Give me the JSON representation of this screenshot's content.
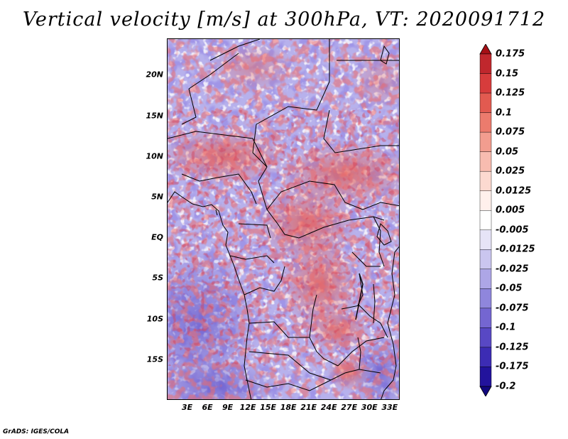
{
  "title": "Vertical velocity [m/s] at 300hPa, VT: 2020091712",
  "credit": "GrADS: IGES/COLA",
  "map": {
    "region": "Central Africa",
    "lat_labels": [
      "20N",
      "15N",
      "10N",
      "5N",
      "EQ",
      "5S",
      "10S",
      "15S"
    ],
    "lat_values": [
      20,
      15,
      10,
      5,
      0,
      -5,
      -10,
      -15
    ],
    "lon_labels": [
      "3E",
      "6E",
      "9E",
      "12E",
      "15E",
      "18E",
      "21E",
      "24E",
      "27E",
      "30E",
      "33E"
    ],
    "lon_values": [
      3,
      6,
      9,
      12,
      15,
      18,
      21,
      24,
      27,
      30,
      33
    ],
    "lon_range": [
      0,
      34.5
    ],
    "lat_range": [
      -20,
      24.5
    ]
  },
  "colorbar": {
    "labels": [
      "0.175",
      "0.15",
      "0.125",
      "0.1",
      "0.075",
      "0.05",
      "0.025",
      "0.0125",
      "0.005",
      "-0.005",
      "-0.0125",
      "-0.025",
      "-0.05",
      "-0.075",
      "-0.1",
      "-0.125",
      "-0.175",
      "-0.2"
    ],
    "colors": [
      "#a50f15",
      "#c0272d",
      "#d73c3c",
      "#e25a50",
      "#ec7b6d",
      "#f29d8f",
      "#f8bcb0",
      "#fcd9d0",
      "#fff0ec",
      "#ffffff",
      "#e6e4f7",
      "#cac6ef",
      "#ada6e6",
      "#8f86dc",
      "#7466d1",
      "#5848c4",
      "#3c2cb4",
      "#22139c",
      "#12087f"
    ]
  },
  "chart_data": {
    "type": "heatmap",
    "title": "Vertical velocity [m/s] at 300hPa, VT: 2020091712",
    "variable": "Vertical velocity",
    "units": "m/s",
    "level": "300hPa",
    "valid_time": "2020091712",
    "xlabel": "",
    "ylabel": "",
    "x_ticks": [
      "3E",
      "6E",
      "9E",
      "12E",
      "15E",
      "18E",
      "21E",
      "24E",
      "27E",
      "30E",
      "33E"
    ],
    "y_ticks": [
      "20N",
      "15N",
      "10N",
      "5N",
      "EQ",
      "5S",
      "10S",
      "15S"
    ],
    "color_levels": [
      0.175,
      0.15,
      0.125,
      0.1,
      0.075,
      0.05,
      0.025,
      0.0125,
      0.005,
      -0.005,
      -0.0125,
      -0.025,
      -0.05,
      -0.075,
      -0.1,
      -0.125,
      -0.175,
      -0.2
    ]
  }
}
